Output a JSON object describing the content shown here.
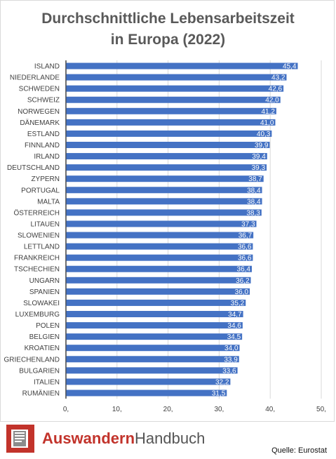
{
  "chart_data": {
    "type": "bar",
    "orientation": "horizontal",
    "title": "Durchschnittliche Lebensarbeitszeit in Europa (2022)",
    "title_lines": [
      "Durchschnittliche Lebensarbeitszeit",
      "in Europa (2022)"
    ],
    "categories": [
      "ISLAND",
      "NIEDERLANDE",
      "SCHWEDEN",
      "SCHWEIZ",
      "NORWEGEN",
      "DÄNEMARK",
      "ESTLAND",
      "FINNLAND",
      "IRLAND",
      "DEUTSCHLAND",
      "ZYPERN",
      "PORTUGAL",
      "MALTA",
      "ÖSTERREICH",
      "LITAUEN",
      "SLOWENIEN",
      "LETTLAND",
      "FRANKREICH",
      "TSCHECHIEN",
      "UNGARN",
      "SPANIEN",
      "SLOWAKEI",
      "LUXEMBURG",
      "POLEN",
      "BELGIEN",
      "KROATIEN",
      "GRIECHENLAND",
      "BULGARIEN",
      "ITALIEN",
      "RUMÄNIEN"
    ],
    "values": [
      45.4,
      43.2,
      42.6,
      42.0,
      41.2,
      41.0,
      40.3,
      39.9,
      39.4,
      39.3,
      38.7,
      38.4,
      38.4,
      38.3,
      37.3,
      36.7,
      36.6,
      36.6,
      36.4,
      36.2,
      36.0,
      35.2,
      34.7,
      34.6,
      34.5,
      34.0,
      33.9,
      33.6,
      32.2,
      31.5
    ],
    "value_labels": [
      "45,4",
      "43,2",
      "42,6",
      "42,0",
      "41,2",
      "41,0",
      "40,3",
      "39,9",
      "39,4",
      "39,3",
      "38,7",
      "38,4",
      "38,4",
      "38,3",
      "37,3",
      "36,7",
      "36,6",
      "36,6",
      "36,4",
      "36,2",
      "36,0",
      "35,2",
      "34,7",
      "34,6",
      "34,5",
      "34,0",
      "33,9",
      "33,6",
      "32,2",
      "31,5"
    ],
    "xlim": [
      0,
      50
    ],
    "xticks": [
      0,
      10,
      20,
      30,
      40,
      50
    ],
    "xtick_labels": [
      "0,",
      "10,",
      "20,",
      "30,",
      "40,",
      "50,"
    ],
    "grid": true,
    "legend": false,
    "colors": {
      "bar": "#4472c4",
      "grid": "#d9d9d9",
      "axis": "#404040",
      "label": "#404040",
      "value_label": "#ffffff",
      "title": "#595959"
    }
  },
  "footer": {
    "brand_part1": "Auswandern",
    "brand_part2": "Handbuch",
    "logo_icon": "book-flag-icon",
    "brand_colors": {
      "accent": "#c2332b",
      "text": "#555555"
    },
    "source": "Quelle: Eurostat"
  }
}
